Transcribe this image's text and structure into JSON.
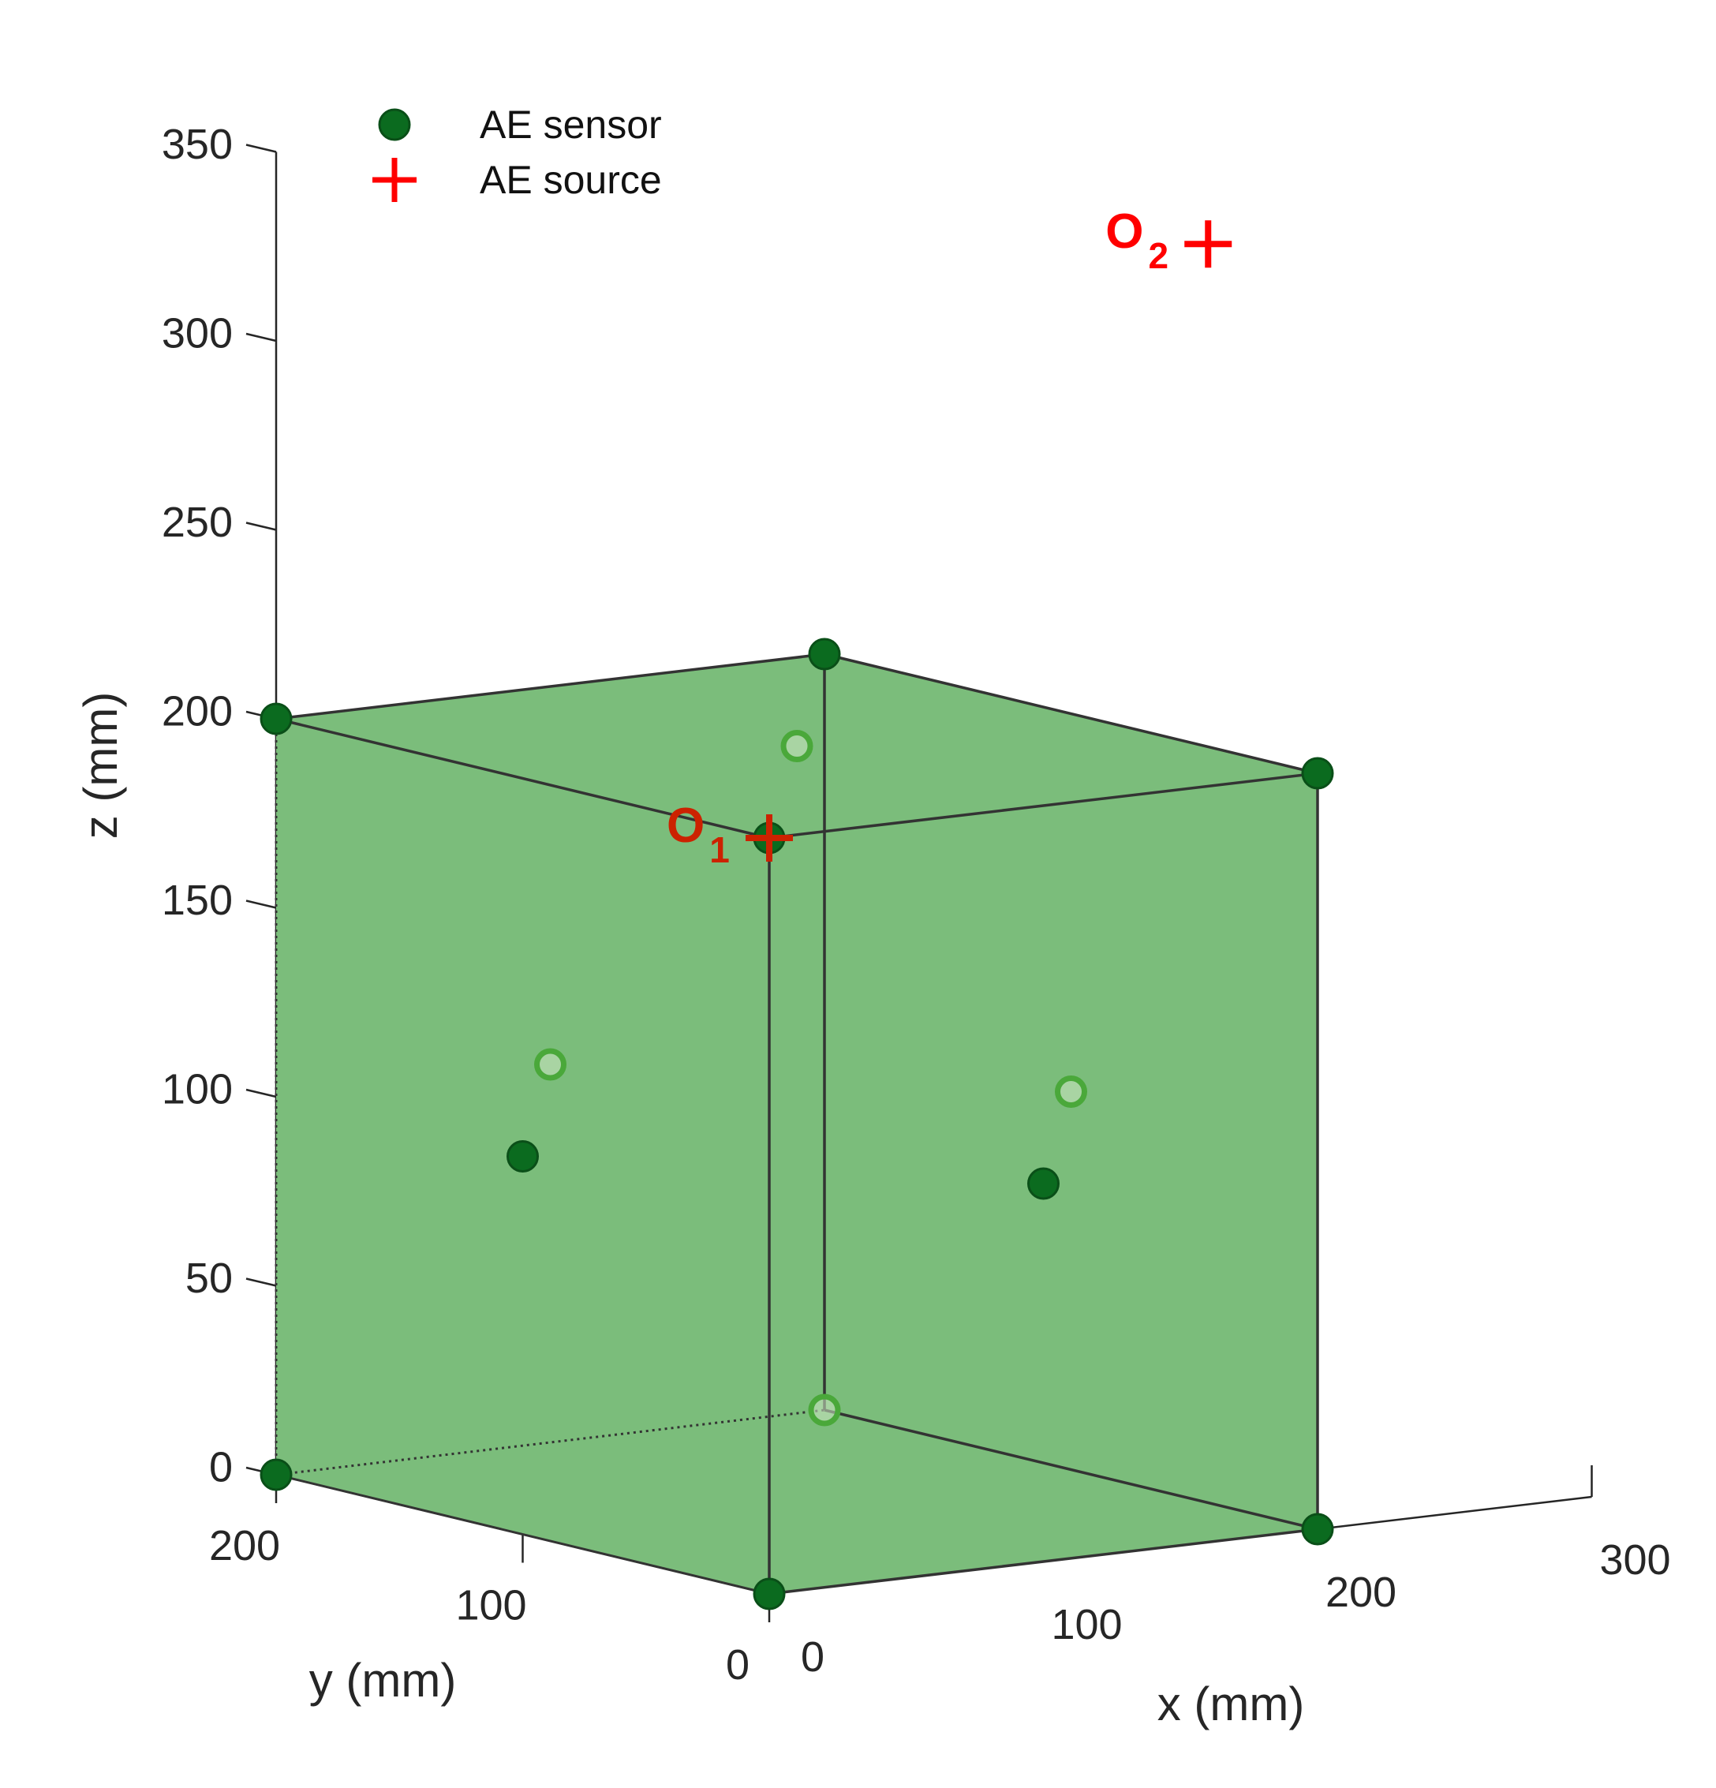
{
  "chart_data": {
    "type": "scatter",
    "title": "",
    "xlabel": "x (mm)",
    "ylabel": "y (mm)",
    "zlabel": "z (mm)",
    "xlim": [
      0,
      300
    ],
    "ylim": [
      0,
      200
    ],
    "zlim": [
      0,
      350
    ],
    "x_ticks": [
      {
        "value": 0,
        "label": "0"
      },
      {
        "value": 100,
        "label": "100"
      },
      {
        "value": 200,
        "label": "200"
      },
      {
        "value": 300,
        "label": "300"
      }
    ],
    "y_ticks": [
      {
        "value": 0,
        "label": "0"
      },
      {
        "value": 100,
        "label": "100"
      },
      {
        "value": 200,
        "label": "200"
      }
    ],
    "z_ticks": [
      {
        "value": 0,
        "label": "0"
      },
      {
        "value": 50,
        "label": "50"
      },
      {
        "value": 100,
        "label": "100"
      },
      {
        "value": 150,
        "label": "150"
      },
      {
        "value": 200,
        "label": "200"
      },
      {
        "value": 250,
        "label": "250"
      },
      {
        "value": 300,
        "label": "300"
      },
      {
        "value": 350,
        "label": "350"
      }
    ],
    "grid": false,
    "legend": {
      "placement": "top-left",
      "entries": [
        {
          "name": "AE sensor",
          "marker": "filled-circle",
          "color": "#0b6b1f"
        },
        {
          "name": "AE source",
          "marker": "plus",
          "color": "#ff0000"
        }
      ]
    },
    "specimen": {
      "color": "#7bbd7b",
      "edge_color": "#333333",
      "x_range": [
        0,
        200
      ],
      "y_range": [
        0,
        200
      ],
      "z_range": [
        0,
        200
      ]
    },
    "series": [
      {
        "name": "AE sensor",
        "points": [
          {
            "x": 0,
            "y": 0,
            "z": 0,
            "visible": true
          },
          {
            "x": 200,
            "y": 0,
            "z": 0,
            "visible": true
          },
          {
            "x": 0,
            "y": 200,
            "z": 0,
            "visible": true
          },
          {
            "x": 200,
            "y": 200,
            "z": 0,
            "visible": false
          },
          {
            "x": 0,
            "y": 0,
            "z": 200,
            "visible": true
          },
          {
            "x": 200,
            "y": 0,
            "z": 200,
            "visible": true
          },
          {
            "x": 0,
            "y": 200,
            "z": 200,
            "visible": true
          },
          {
            "x": 200,
            "y": 200,
            "z": 200,
            "visible": true
          },
          {
            "x": 100,
            "y": 0,
            "z": 100,
            "visible": true
          },
          {
            "x": 0,
            "y": 100,
            "z": 100,
            "visible": true
          },
          {
            "x": 200,
            "y": 100,
            "z": 100,
            "visible": false
          },
          {
            "x": 100,
            "y": 200,
            "z": 100,
            "visible": false
          },
          {
            "x": 100,
            "y": 100,
            "z": 200,
            "visible": false
          }
        ]
      },
      {
        "name": "AE source",
        "points": [
          {
            "label": "O",
            "subscript": "1",
            "x": 0,
            "y": 0,
            "z": 200,
            "color": "#cc2200"
          },
          {
            "label": "O",
            "subscript": "2",
            "x": 250,
            "y": 100,
            "z": 320,
            "color": "#ff0000"
          }
        ]
      }
    ]
  }
}
